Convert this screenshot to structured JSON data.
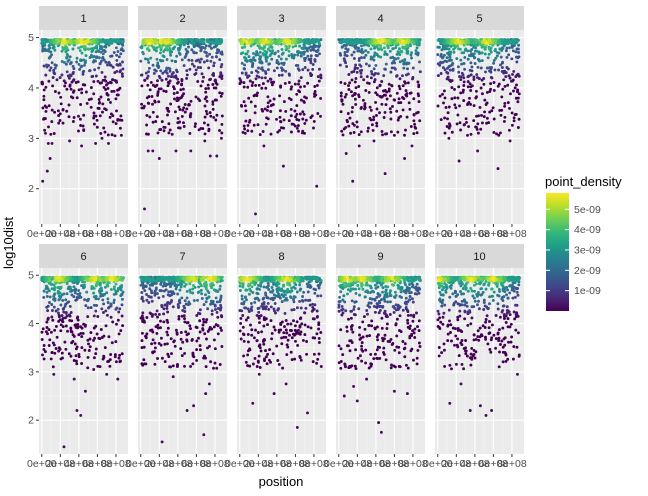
{
  "chart_data": {
    "type": "scatter",
    "facet_by": "chromosome",
    "xlabel": "position",
    "ylabel": "log10dist",
    "x_tick_labels": [
      "0e+00",
      "2e+08",
      "4e+08",
      "6e+08",
      "8e+08"
    ],
    "x_ticks": [
      0,
      200000000,
      400000000,
      600000000,
      800000000
    ],
    "y_ticks": [
      2,
      3,
      4,
      5
    ],
    "xlim": [
      -30000000,
      930000000
    ],
    "ylim": [
      1.3,
      5.15
    ],
    "facets": [
      {
        "label": "1",
        "outliers": [
          [
            10000000,
            2.15
          ],
          [
            60000000,
            2.35
          ],
          [
            90000000,
            2.6
          ],
          [
            40000000,
            3.1
          ],
          [
            70000000,
            2.9
          ],
          [
            110000000,
            2.9
          ],
          [
            300000000,
            2.95
          ],
          [
            430000000,
            2.85
          ],
          [
            580000000,
            2.9
          ],
          [
            650000000,
            3.0
          ],
          [
            720000000,
            2.9
          ],
          [
            790000000,
            3.05
          ]
        ]
      },
      {
        "label": "2",
        "outliers": [
          [
            40000000,
            1.6
          ],
          [
            80000000,
            2.75
          ],
          [
            130000000,
            2.75
          ],
          [
            200000000,
            2.6
          ],
          [
            380000000,
            2.75
          ],
          [
            540000000,
            2.75
          ],
          [
            690000000,
            2.95
          ],
          [
            750000000,
            2.65
          ],
          [
            820000000,
            2.65
          ],
          [
            870000000,
            3.0
          ]
        ]
      },
      {
        "label": "3",
        "outliers": [
          [
            170000000,
            1.5
          ],
          [
            470000000,
            2.45
          ],
          [
            830000000,
            2.05
          ],
          [
            60000000,
            3.1
          ],
          [
            260000000,
            2.85
          ],
          [
            620000000,
            3.2
          ]
        ]
      },
      {
        "label": "4",
        "outliers": [
          [
            80000000,
            2.7
          ],
          [
            150000000,
            2.15
          ],
          [
            220000000,
            2.85
          ],
          [
            500000000,
            2.3
          ],
          [
            710000000,
            2.6
          ],
          [
            790000000,
            2.85
          ],
          [
            380000000,
            2.95
          ]
        ]
      },
      {
        "label": "5",
        "outliers": [
          [
            230000000,
            2.55
          ],
          [
            650000000,
            2.4
          ],
          [
            430000000,
            2.75
          ],
          [
            120000000,
            3.0
          ],
          [
            780000000,
            2.95
          ]
        ]
      },
      {
        "label": "6",
        "outliers": [
          [
            240000000,
            1.45
          ],
          [
            380000000,
            2.2
          ],
          [
            420000000,
            2.1
          ],
          [
            470000000,
            2.6
          ],
          [
            130000000,
            2.95
          ],
          [
            350000000,
            2.85
          ],
          [
            560000000,
            3.05
          ],
          [
            700000000,
            2.95
          ],
          [
            820000000,
            2.85
          ]
        ]
      },
      {
        "label": "7",
        "outliers": [
          [
            230000000,
            1.55
          ],
          [
            680000000,
            1.7
          ],
          [
            500000000,
            2.2
          ],
          [
            570000000,
            2.3
          ],
          [
            700000000,
            2.55
          ],
          [
            740000000,
            2.75
          ],
          [
            350000000,
            2.9
          ]
        ]
      },
      {
        "label": "8",
        "outliers": [
          [
            140000000,
            2.35
          ],
          [
            620000000,
            1.85
          ],
          [
            730000000,
            2.15
          ],
          [
            370000000,
            2.55
          ],
          [
            500000000,
            2.75
          ],
          [
            210000000,
            2.95
          ]
        ]
      },
      {
        "label": "9",
        "outliers": [
          [
            460000000,
            1.75
          ],
          [
            430000000,
            1.95
          ],
          [
            60000000,
            2.5
          ],
          [
            160000000,
            2.7
          ],
          [
            300000000,
            2.85
          ],
          [
            600000000,
            2.6
          ],
          [
            740000000,
            2.55
          ],
          [
            200000000,
            2.4
          ]
        ]
      },
      {
        "label": "10",
        "outliers": [
          [
            130000000,
            2.35
          ],
          [
            350000000,
            2.2
          ],
          [
            460000000,
            2.3
          ],
          [
            520000000,
            2.1
          ],
          [
            580000000,
            2.2
          ],
          [
            860000000,
            2.95
          ],
          [
            250000000,
            2.75
          ]
        ]
      }
    ],
    "color_scale": {
      "name": "viridis",
      "title": "point_density",
      "min": 0,
      "max": 5.8e-09,
      "breaks": [
        1e-09,
        2e-09,
        3e-09,
        4e-09,
        5e-09
      ],
      "break_labels": [
        "1e-09",
        "2e-09",
        "3e-09",
        "4e-09",
        "5e-09"
      ],
      "stops": [
        "#440154",
        "#482878",
        "#3e4a89",
        "#31688e",
        "#26828e",
        "#1f9e89",
        "#35b779",
        "#6ece58",
        "#b5de2b",
        "#fde725"
      ]
    },
    "panel_background": "#ebebeb",
    "strip_background": "#d9d9d9",
    "grid_color": "#ffffff"
  }
}
